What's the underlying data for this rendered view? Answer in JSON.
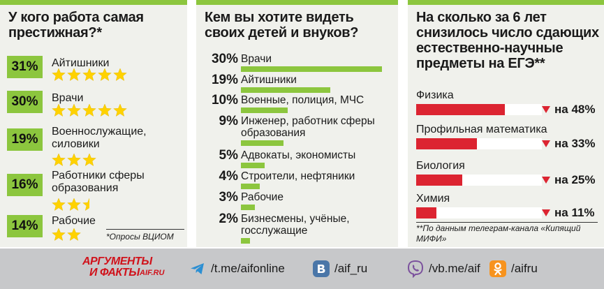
{
  "chart_data": [
    {
      "type": "bar",
      "title": "У кого работа самая престижная?*",
      "categories": [
        "Айтишники",
        "Врачи",
        "Военнослужащие, силовики",
        "Работники сферы образования",
        "Рабочие"
      ],
      "values": [
        31,
        30,
        19,
        16,
        14
      ],
      "labels": [
        "31%",
        "30%",
        "19%",
        "16%",
        "14%"
      ],
      "stars": [
        5,
        5,
        3,
        2.5,
        2
      ],
      "source": "*Опросы ВЦИОМ"
    },
    {
      "type": "bar",
      "title": "Кем вы хотите видеть своих детей и внуков?",
      "categories": [
        "Врачи",
        "Айтишники",
        "Военные, полиция, МЧС",
        "Инженер, работник сферы образования",
        "Адвокаты, экономисты",
        "Строители, нефтяники",
        "Рабочие",
        "Бизнесмены, учёные, госслужащие"
      ],
      "values": [
        30,
        19,
        10,
        9,
        5,
        4,
        3,
        2
      ],
      "labels": [
        "30%",
        "19%",
        "10%",
        "9%",
        "5%",
        "4%",
        "3%",
        "2%"
      ]
    },
    {
      "type": "bar",
      "title": "На сколько за 6 лет снизилось число сдающих естественно-научные предметы на ЕГЭ**",
      "categories": [
        "Физика",
        "Профильная математика",
        "Биология",
        "Химия"
      ],
      "values": [
        48,
        33,
        25,
        11
      ],
      "labels": [
        "на 48%",
        "на 33%",
        "на 25%",
        "на 11%"
      ],
      "source": "**По данным телеграм-канала «Кипящий МИФИ»"
    }
  ],
  "colors": {
    "accent_green": "#8cc63e",
    "accent_red": "#dc2431",
    "star": "#ffd200",
    "panel_bg": "#f0f1ec",
    "footer_bg": "#c7c8ca"
  },
  "footer": {
    "logo_line1": "АРГУМЕНТЫ",
    "logo_line2": "И ФАКТЫ",
    "logo_sub": "AIF.RU",
    "links": [
      {
        "icon": "telegram-icon",
        "text": "/t.me/aifonline"
      },
      {
        "icon": "vk-icon",
        "text": "/aif_ru"
      },
      {
        "icon": "viber-icon",
        "text": "/vb.me/aif"
      },
      {
        "icon": "odnoklassniki-icon",
        "text": "/aifru"
      }
    ]
  }
}
